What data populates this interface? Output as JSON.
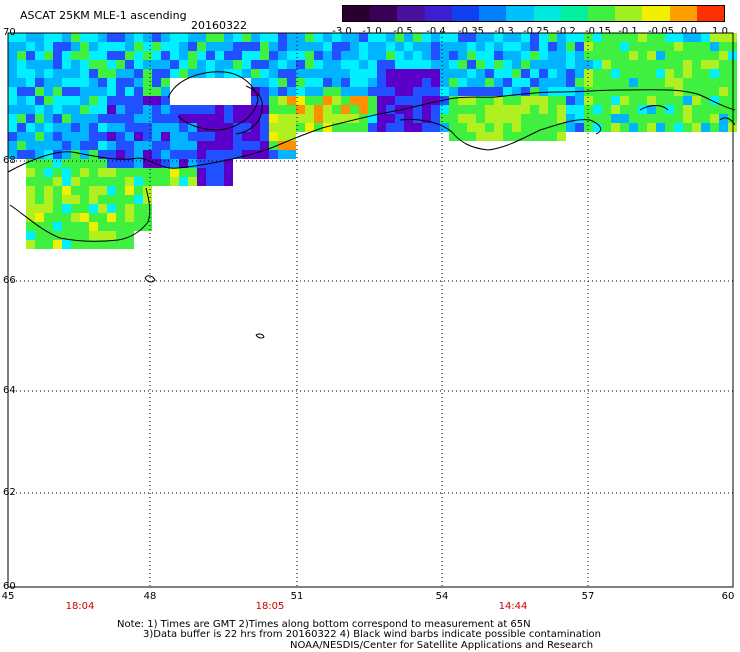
{
  "header": {
    "title": "ASCAT 25KM MLE-1 ascending",
    "date": "20160322"
  },
  "colorbar": {
    "tick_labels": [
      "-3.0",
      "-1.0",
      "-0.5",
      "-0.4",
      "-0.35",
      "-0.3",
      "-0.25",
      "-0.2",
      "-0.15",
      "-0.1",
      "-0.05",
      "0.0",
      "1.0"
    ],
    "colors": [
      "#2a0030",
      "#3a0058",
      "#4a10a0",
      "#3a20d0",
      "#1040f0",
      "#0080ff",
      "#00c0ff",
      "#00e8e0",
      "#00f0a0",
      "#40f040",
      "#a0f020",
      "#f0f000",
      "#ffa000",
      "#ff3000"
    ]
  },
  "axes": {
    "lat_labels": [
      "70",
      "68",
      "66",
      "64",
      "62",
      "60"
    ],
    "lon_labels": [
      "45",
      "48",
      "51",
      "54",
      "57",
      "60"
    ],
    "time_labels": [
      "18:04",
      "18:05",
      "14:44"
    ]
  },
  "map": {
    "region": "NW Russia coast / Barents Sea",
    "data_colors": {
      "purple": "#5a00c8",
      "blue": "#2050ff",
      "lightblue": "#00b4ff",
      "cyan": "#00f0ff",
      "green": "#40f040",
      "yellowgreen": "#b0f020",
      "yellow": "#f0f000",
      "orange": "#ff9000"
    }
  },
  "footer": {
    "note_line1": "Note: 1) Times are GMT 2)Times along bottom correspond to measurement at 65N",
    "note_line2": "3)Data buffer is 22 hrs from 20160322 4) Black wind barbs indicate possible contamination",
    "credit": "NOAA/NESDIS/Center for Satellite Applications and Research"
  }
}
